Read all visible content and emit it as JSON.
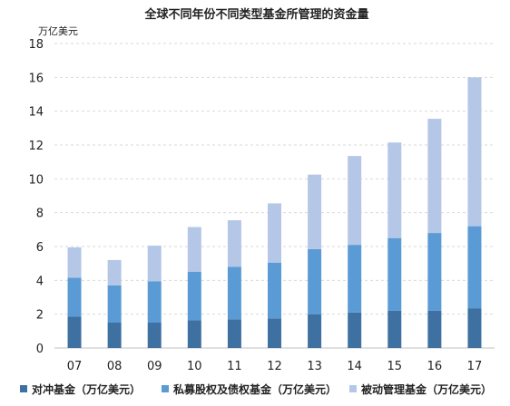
{
  "chart_data": {
    "type": "bar",
    "stacked": true,
    "title": "全球不同年份不同类型基金所管理的资金量",
    "ylabel": "万亿美元",
    "xlabel": "",
    "categories": [
      "07",
      "08",
      "09",
      "10",
      "11",
      "12",
      "13",
      "14",
      "15",
      "16",
      "17"
    ],
    "ylim": [
      0,
      18
    ],
    "yticks": [
      0,
      2,
      4,
      6,
      8,
      10,
      12,
      14,
      16,
      18
    ],
    "grid": "horizontal",
    "legend_position": "bottom",
    "series": [
      {
        "name": "对冲基金（万亿美元）",
        "color": "#3f70a2",
        "values": [
          1.85,
          1.5,
          1.5,
          1.65,
          1.7,
          1.75,
          2.0,
          2.1,
          2.2,
          2.2,
          2.35
        ]
      },
      {
        "name": "私募股权及债权基金（万亿美元）",
        "color": "#5b9bd5",
        "values": [
          2.3,
          2.2,
          2.45,
          2.85,
          3.1,
          3.3,
          3.85,
          4.0,
          4.3,
          4.6,
          4.85
        ]
      },
      {
        "name": "被动管理基金（万亿美元）",
        "color": "#b4c7e7",
        "values": [
          1.8,
          1.5,
          2.1,
          2.65,
          2.75,
          3.5,
          4.4,
          5.25,
          5.65,
          6.75,
          8.8
        ]
      }
    ]
  }
}
